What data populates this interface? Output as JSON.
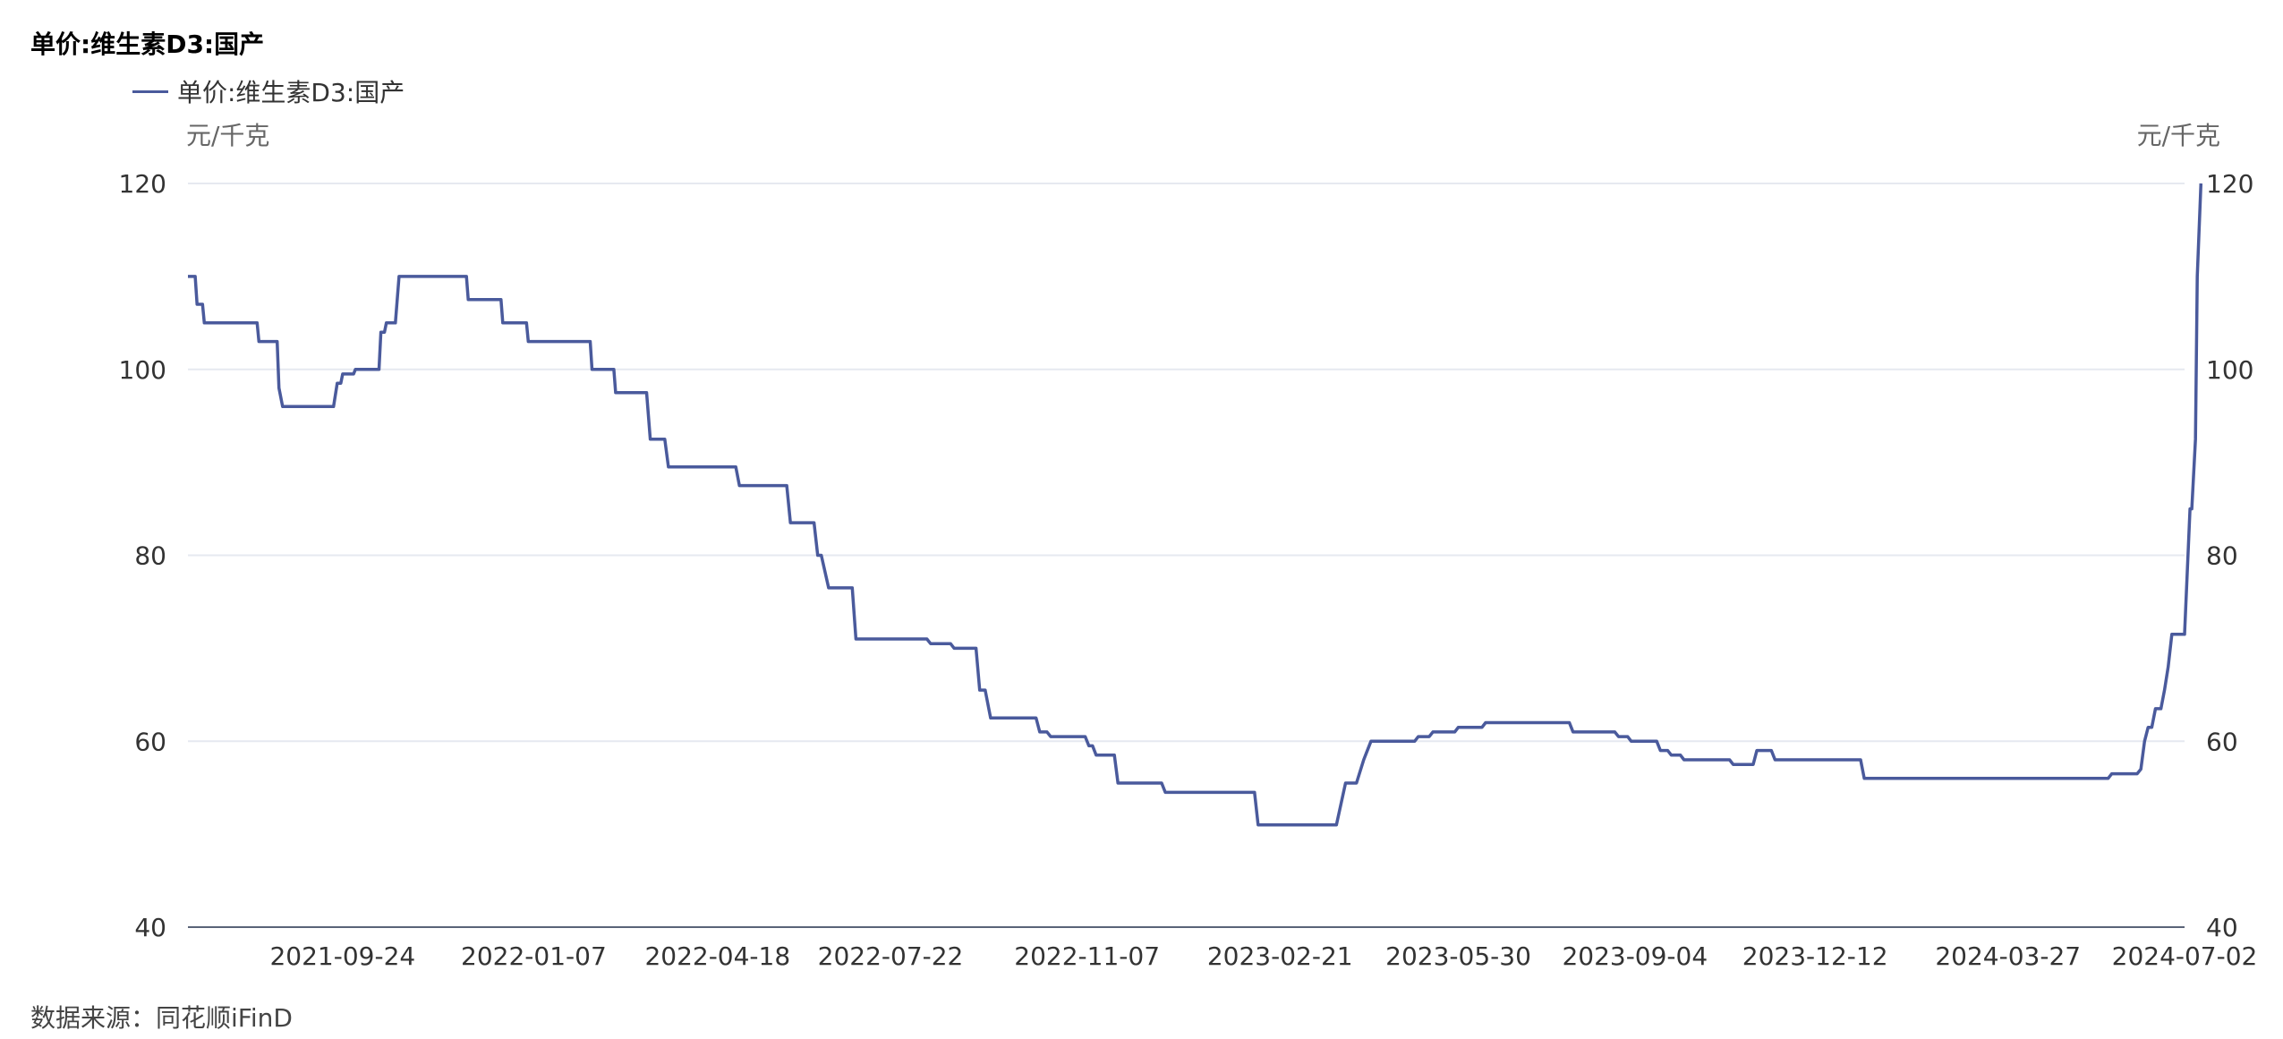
{
  "chart_data": {
    "type": "line",
    "title": "单价:维生素D3:国产",
    "unit_left": "元/千克",
    "unit_right": "元/千克",
    "source": "数据来源：同花顺iFinD",
    "ylim": [
      40,
      120
    ],
    "yticks": [
      40,
      60,
      80,
      100,
      120
    ],
    "xlim": [
      "2021-07-01",
      "2024-07-02"
    ],
    "xticks": [
      "2021-09-24",
      "2022-01-07",
      "2022-04-18",
      "2022-07-22",
      "2022-11-07",
      "2023-02-21",
      "2023-05-30",
      "2023-09-04",
      "2023-12-12",
      "2024-03-27",
      "2024-07-02"
    ],
    "grid": "horizontal",
    "legend": "top-left",
    "colors": {
      "series": "#4a5a9c",
      "grid": "#e6e9f0",
      "axis": "#5a6478"
    },
    "series": [
      {
        "name": "单价:维生素D3:国产",
        "points": [
          [
            "2021-07-01",
            110
          ],
          [
            "2021-07-05",
            110
          ],
          [
            "2021-07-06",
            107
          ],
          [
            "2021-07-09",
            107
          ],
          [
            "2021-07-10",
            105
          ],
          [
            "2021-08-08",
            105
          ],
          [
            "2021-08-09",
            103
          ],
          [
            "2021-08-19",
            103
          ],
          [
            "2021-08-20",
            98
          ],
          [
            "2021-08-22",
            96
          ],
          [
            "2021-09-19",
            96
          ],
          [
            "2021-09-21",
            98.5
          ],
          [
            "2021-09-23",
            98.5
          ],
          [
            "2021-09-24",
            99.5
          ],
          [
            "2021-09-30",
            99.5
          ],
          [
            "2021-10-01",
            100
          ],
          [
            "2021-10-14",
            100
          ],
          [
            "2021-10-15",
            104
          ],
          [
            "2021-10-17",
            104
          ],
          [
            "2021-10-18",
            105
          ],
          [
            "2021-10-23",
            105
          ],
          [
            "2021-10-25",
            110
          ],
          [
            "2021-12-01",
            110
          ],
          [
            "2021-12-02",
            107.5
          ],
          [
            "2021-12-20",
            107.5
          ],
          [
            "2021-12-21",
            105
          ],
          [
            "2022-01-03",
            105
          ],
          [
            "2022-01-04",
            103
          ],
          [
            "2022-02-07",
            103
          ],
          [
            "2022-02-08",
            100
          ],
          [
            "2022-02-20",
            100
          ],
          [
            "2022-02-21",
            97.5
          ],
          [
            "2022-03-10",
            97.5
          ],
          [
            "2022-03-12",
            92.5
          ],
          [
            "2022-03-20",
            92.5
          ],
          [
            "2022-03-22",
            89.5
          ],
          [
            "2022-04-28",
            89.5
          ],
          [
            "2022-04-30",
            87.5
          ],
          [
            "2022-05-26",
            87.5
          ],
          [
            "2022-05-28",
            83.5
          ],
          [
            "2022-06-10",
            83.5
          ],
          [
            "2022-06-12",
            80
          ],
          [
            "2022-06-14",
            80
          ],
          [
            "2022-06-18",
            76.5
          ],
          [
            "2022-07-01",
            76.5
          ],
          [
            "2022-07-03",
            71
          ],
          [
            "2022-08-11",
            71
          ],
          [
            "2022-08-13",
            70.5
          ],
          [
            "2022-08-24",
            70.5
          ],
          [
            "2022-08-26",
            70
          ],
          [
            "2022-09-07",
            70
          ],
          [
            "2022-09-09",
            65.5
          ],
          [
            "2022-09-12",
            65.5
          ],
          [
            "2022-09-15",
            62.5
          ],
          [
            "2022-10-10",
            62.5
          ],
          [
            "2022-10-12",
            61
          ],
          [
            "2022-10-16",
            61
          ],
          [
            "2022-10-18",
            60.5
          ],
          [
            "2022-11-06",
            60.5
          ],
          [
            "2022-11-08",
            59.5
          ],
          [
            "2022-11-10",
            59.5
          ],
          [
            "2022-11-12",
            58.5
          ],
          [
            "2022-11-22",
            58.5
          ],
          [
            "2022-11-24",
            55.5
          ],
          [
            "2022-12-18",
            55.5
          ],
          [
            "2022-12-20",
            54.5
          ],
          [
            "2023-02-07",
            54.5
          ],
          [
            "2023-02-09",
            51
          ],
          [
            "2023-03-24",
            51
          ],
          [
            "2023-03-29",
            55.5
          ],
          [
            "2023-04-04",
            55.5
          ],
          [
            "2023-04-08",
            58
          ],
          [
            "2023-04-12",
            60
          ],
          [
            "2023-05-06",
            60
          ],
          [
            "2023-05-08",
            60.5
          ],
          [
            "2023-05-14",
            60.5
          ],
          [
            "2023-05-16",
            61
          ],
          [
            "2023-05-28",
            61
          ],
          [
            "2023-05-30",
            61.5
          ],
          [
            "2023-06-12",
            61.5
          ],
          [
            "2023-06-14",
            62
          ],
          [
            "2023-07-30",
            62
          ],
          [
            "2023-08-01",
            61
          ],
          [
            "2023-08-24",
            61
          ],
          [
            "2023-08-26",
            60.5
          ],
          [
            "2023-08-31",
            60.5
          ],
          [
            "2023-09-02",
            60
          ],
          [
            "2023-09-16",
            60
          ],
          [
            "2023-09-18",
            59
          ],
          [
            "2023-09-22",
            59
          ],
          [
            "2023-09-24",
            58.5
          ],
          [
            "2023-09-29",
            58.5
          ],
          [
            "2023-10-01",
            58
          ],
          [
            "2023-10-26",
            58
          ],
          [
            "2023-10-28",
            57.5
          ],
          [
            "2023-11-08",
            57.5
          ],
          [
            "2023-11-10",
            59
          ],
          [
            "2023-11-18",
            59
          ],
          [
            "2023-11-20",
            58
          ],
          [
            "2024-01-06",
            58
          ],
          [
            "2024-01-08",
            56
          ],
          [
            "2024-05-21",
            56
          ],
          [
            "2024-05-23",
            56.5
          ],
          [
            "2024-06-06",
            56.5
          ],
          [
            "2024-06-08",
            57
          ],
          [
            "2024-06-10",
            60
          ],
          [
            "2024-06-12",
            61.5
          ],
          [
            "2024-06-14",
            61.5
          ],
          [
            "2024-06-16",
            63.5
          ],
          [
            "2024-06-19",
            63.5
          ],
          [
            "2024-06-21",
            65.5
          ],
          [
            "2024-06-23",
            68
          ],
          [
            "2024-06-25",
            71.5
          ],
          [
            "2024-07-02",
            71.5
          ],
          [
            "2024-07-05",
            85
          ],
          [
            "2024-07-06",
            85
          ],
          [
            "2024-07-08",
            92.5
          ],
          [
            "2024-07-09",
            110
          ],
          [
            "2024-07-11",
            120
          ]
        ]
      }
    ]
  }
}
